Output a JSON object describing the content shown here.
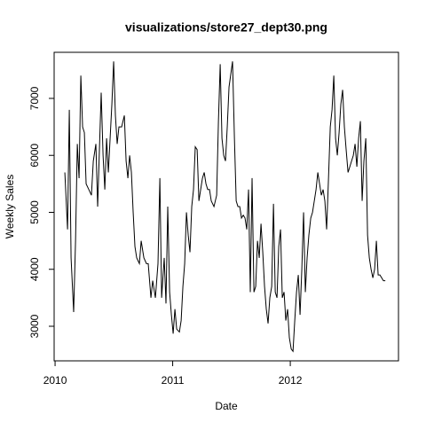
{
  "chart_data": {
    "type": "line",
    "title": "visualizations/store27_dept30.png",
    "x_label": "Date",
    "y_label": "Weekly Sales",
    "x": [
      2010.083,
      2010.106,
      2010.121,
      2010.136,
      2010.158,
      2010.174,
      2010.189,
      2010.204,
      2010.219,
      2010.234,
      2010.249,
      2010.264,
      2010.287,
      2010.309,
      2010.325,
      2010.347,
      2010.362,
      2010.377,
      2010.392,
      2010.408,
      2010.423,
      2010.438,
      2010.453,
      2010.468,
      2010.483,
      2010.498,
      2010.513,
      2010.528,
      2010.543,
      2010.566,
      2010.589,
      2010.604,
      2010.619,
      2010.634,
      2010.649,
      2010.664,
      2010.679,
      2010.694,
      2010.717,
      2010.732,
      2010.755,
      2010.777,
      2010.792,
      2010.815,
      2010.83,
      2010.853,
      2010.875,
      2010.891,
      2010.906,
      2010.928,
      2010.943,
      2010.958,
      2010.974,
      2010.989,
      2011.004,
      2011.019,
      2011.034,
      2011.057,
      2011.072,
      2011.087,
      2011.102,
      2011.117,
      2011.132,
      2011.147,
      2011.162,
      2011.177,
      2011.192,
      2011.208,
      2011.223,
      2011.238,
      2011.253,
      2011.268,
      2011.283,
      2011.298,
      2011.313,
      2011.328,
      2011.351,
      2011.374,
      2011.389,
      2011.404,
      2011.419,
      2011.434,
      2011.449,
      2011.464,
      2011.479,
      2011.509,
      2011.525,
      2011.54,
      2011.555,
      2011.57,
      2011.585,
      2011.6,
      2011.615,
      2011.63,
      2011.645,
      2011.66,
      2011.675,
      2011.691,
      2011.706,
      2011.721,
      2011.736,
      2011.751,
      2011.766,
      2011.781,
      2011.796,
      2011.811,
      2011.826,
      2011.842,
      2011.857,
      2011.872,
      2011.887,
      2011.902,
      2011.917,
      2011.932,
      2011.947,
      2011.962,
      2011.977,
      2011.992,
      2012.008,
      2012.023,
      2012.038,
      2012.053,
      2012.068,
      2012.083,
      2012.098,
      2012.113,
      2012.128,
      2012.143,
      2012.158,
      2012.174,
      2012.189,
      2012.204,
      2012.219,
      2012.234,
      2012.249,
      2012.264,
      2012.279,
      2012.294,
      2012.309,
      2012.325,
      2012.34,
      2012.355,
      2012.37,
      2012.385,
      2012.4,
      2012.415,
      2012.43,
      2012.445,
      2012.46,
      2012.475,
      2012.491,
      2012.506,
      2012.521,
      2012.536,
      2012.551,
      2012.566,
      2012.581,
      2012.596,
      2012.611,
      2012.626,
      2012.642,
      2012.657,
      2012.672,
      2012.687,
      2012.702,
      2012.717,
      2012.732,
      2012.747,
      2012.762,
      2012.792,
      2012.808
    ],
    "values": [
      5700,
      4700,
      6800,
      4200,
      3250,
      4500,
      6200,
      5600,
      7400,
      6500,
      6400,
      5500,
      5400,
      5300,
      5900,
      6200,
      5100,
      6100,
      7100,
      6000,
      5400,
      6300,
      5700,
      6300,
      6900,
      7650,
      6700,
      6200,
      6500,
      6500,
      6700,
      5900,
      5600,
      6000,
      5700,
      5000,
      4400,
      4200,
      4100,
      4500,
      4200,
      4100,
      4100,
      3500,
      3800,
      3500,
      4100,
      5600,
      3500,
      4200,
      3400,
      5100,
      3600,
      3200,
      2870,
      3300,
      2950,
      2900,
      3100,
      3700,
      4100,
      5000,
      4600,
      4300,
      5100,
      5400,
      6150,
      6100,
      5200,
      5400,
      5600,
      5700,
      5500,
      5400,
      5400,
      5200,
      5100,
      5300,
      6600,
      7600,
      6300,
      6000,
      5900,
      6500,
      7200,
      7650,
      6300,
      5200,
      5100,
      5100,
      4900,
      4950,
      4900,
      4700,
      5400,
      3600,
      5600,
      3600,
      3700,
      4500,
      4200,
      4800,
      4300,
      3700,
      3300,
      3050,
      3500,
      3700,
      5150,
      3600,
      3500,
      4400,
      4700,
      3500,
      3600,
      3100,
      3300,
      2800,
      2600,
      2560,
      3100,
      3600,
      3900,
      3200,
      4000,
      5000,
      3600,
      4200,
      4600,
      4900,
      5000,
      5200,
      5400,
      5700,
      5500,
      5300,
      5400,
      5200,
      4700,
      5600,
      6500,
      6800,
      7400,
      6300,
      6000,
      6400,
      6900,
      7150,
      6500,
      6100,
      5700,
      5800,
      5900,
      6000,
      6200,
      5800,
      6300,
      6600,
      5200,
      5900,
      6300,
      4600,
      4200,
      4000,
      3850,
      4000,
      4500,
      3900,
      3900,
      3800,
      3800
    ],
    "color": "#000000",
    "xlim": [
      2009.992,
      2012.92
    ],
    "xticks": [
      2010,
      2011,
      2012
    ],
    "ylim": [
      2393,
      7809
    ],
    "yticks": [
      3000,
      4000,
      5000,
      6000,
      7000
    ]
  }
}
